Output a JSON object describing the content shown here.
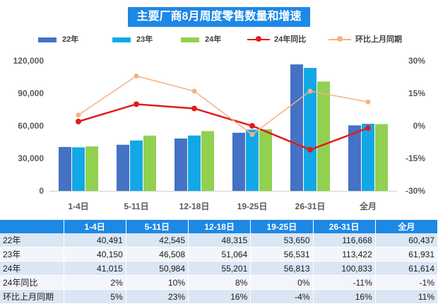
{
  "chart_data": {
    "type": "bar",
    "title": "主要厂商8月周度零售数量和增速",
    "categories": [
      "1-4日",
      "5-11日",
      "12-18日",
      "19-25日",
      "26-31日",
      "全月"
    ],
    "series": [
      {
        "name": "22年",
        "kind": "bar",
        "axis": "left",
        "color": "#4472c4",
        "values": [
          40491,
          42545,
          48315,
          53650,
          116668,
          60437
        ]
      },
      {
        "name": "23年",
        "kind": "bar",
        "axis": "left",
        "color": "#12a8e8",
        "values": [
          40150,
          46508,
          51064,
          56531,
          113422,
          61931
        ]
      },
      {
        "name": "24年",
        "kind": "bar",
        "axis": "left",
        "color": "#92d050",
        "values": [
          41015,
          50984,
          55201,
          56813,
          100833,
          61614
        ]
      },
      {
        "name": "24年同比",
        "kind": "line",
        "axis": "right",
        "color": "#e31a1c",
        "values": [
          2,
          10,
          8,
          0,
          -11,
          -1
        ]
      },
      {
        "name": "环比上月同期",
        "kind": "line",
        "axis": "right",
        "color": "#f4b183",
        "values": [
          5,
          23,
          16,
          -4,
          16,
          11
        ]
      }
    ],
    "left_axis": {
      "ylim": [
        0,
        120000
      ],
      "ticks": [
        "0",
        "30,000",
        "60,000",
        "90,000",
        "120,000"
      ],
      "tick_values": [
        0,
        30000,
        60000,
        90000,
        120000
      ]
    },
    "right_axis": {
      "ylim": [
        -30,
        30
      ],
      "ticks": [
        "-30%",
        "-15%",
        "0%",
        "15%",
        "30%"
      ],
      "tick_values": [
        -30,
        -15,
        0,
        15,
        30
      ]
    },
    "legend_position": "top",
    "grid": false
  },
  "table": {
    "header": [
      "",
      "1-4日",
      "5-11日",
      "12-18日",
      "19-25日",
      "26-31日",
      "全月"
    ],
    "rows": [
      {
        "label": "22年",
        "cells": [
          "40,491",
          "42,545",
          "48,315",
          "53,650",
          "116,668",
          "60,437"
        ]
      },
      {
        "label": "23年",
        "cells": [
          "40,150",
          "46,508",
          "51,064",
          "56,531",
          "113,422",
          "61,931"
        ]
      },
      {
        "label": "24年",
        "cells": [
          "41,015",
          "50,984",
          "55,201",
          "56,813",
          "100,833",
          "61,614"
        ]
      },
      {
        "label": "24年同比",
        "cells": [
          "2%",
          "10%",
          "8%",
          "0%",
          "-11%",
          "-1%"
        ]
      },
      {
        "label": "环比上月同期",
        "cells": [
          "5%",
          "23%",
          "16%",
          "-4%",
          "16%",
          "11%"
        ]
      }
    ]
  }
}
